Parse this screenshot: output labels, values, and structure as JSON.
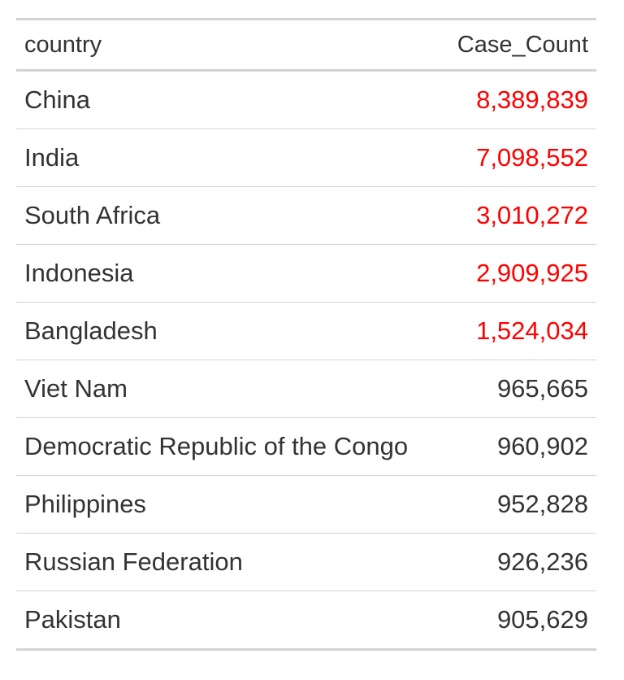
{
  "table": {
    "columns": [
      "country",
      "Case_Count"
    ],
    "highlight_color": "#ff0000",
    "rows": [
      {
        "country": "China",
        "count": "8,389,839",
        "highlight": true
      },
      {
        "country": "India",
        "count": "7,098,552",
        "highlight": true
      },
      {
        "country": "South Africa",
        "count": "3,010,272",
        "highlight": true
      },
      {
        "country": "Indonesia",
        "count": "2,909,925",
        "highlight": true
      },
      {
        "country": "Bangladesh",
        "count": "1,524,034",
        "highlight": true
      },
      {
        "country": "Viet Nam",
        "count": "965,665",
        "highlight": false
      },
      {
        "country": "Democratic Republic of the Congo",
        "count": "960,902",
        "highlight": false
      },
      {
        "country": "Philippines",
        "count": "952,828",
        "highlight": false
      },
      {
        "country": "Russian Federation",
        "count": "926,236",
        "highlight": false
      },
      {
        "country": "Pakistan",
        "count": "905,629",
        "highlight": false
      }
    ]
  }
}
